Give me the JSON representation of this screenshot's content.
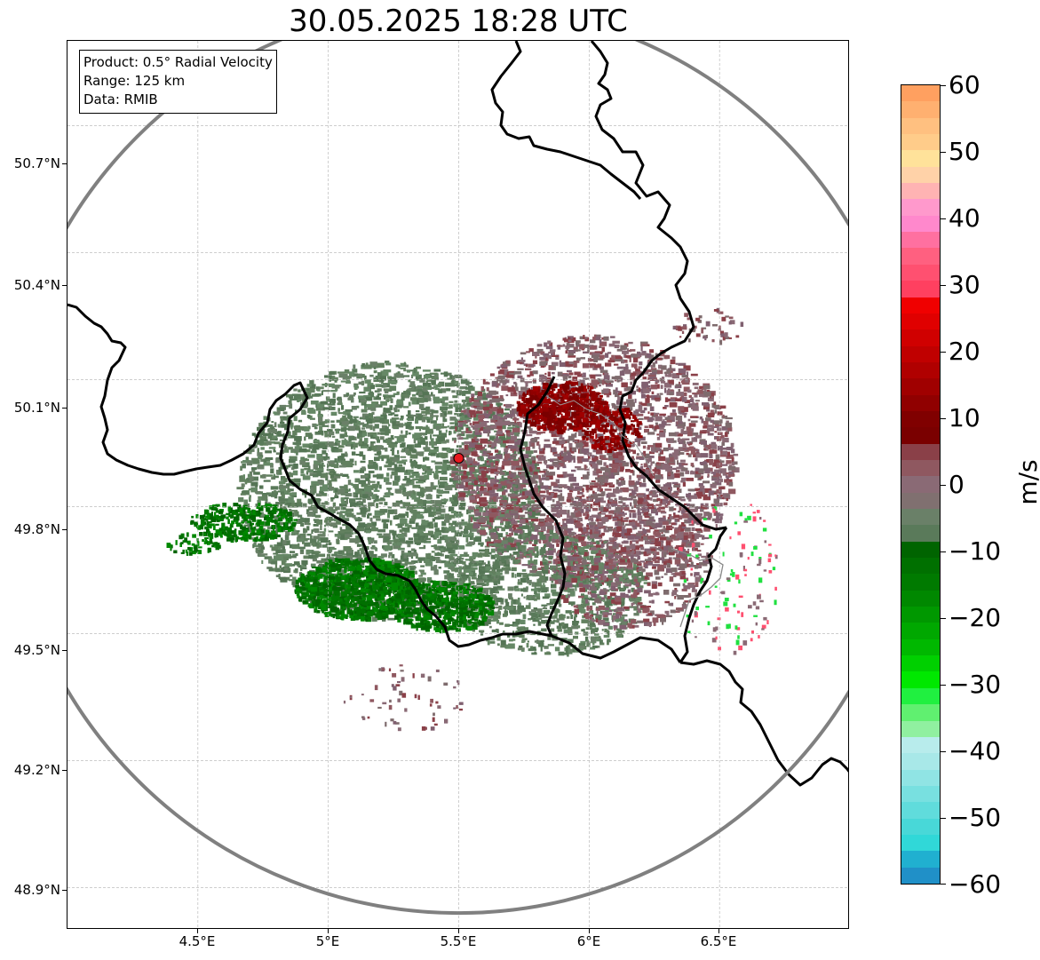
{
  "title": "30.05.2025 18:28 UTC",
  "info": {
    "product": "Product: 0.5° Radial Velocity",
    "range": "Range: 125 km",
    "source": "Data: RMIB"
  },
  "axes": {
    "lat_labels": [
      "50.7°N",
      "50.4°N",
      "50.1°N",
      "49.8°N",
      "49.5°N",
      "49.2°N",
      "48.9°N"
    ],
    "lon_labels": [
      "4.5°E",
      "5°E",
      "5.5°E",
      "6°E",
      "6.5°E"
    ],
    "lon_range": [
      4.0,
      7.0
    ],
    "lat_range": [
      48.8,
      50.9
    ],
    "grid": true
  },
  "radar": {
    "site_lon": 5.5,
    "site_lat": 49.914,
    "range_km": 125,
    "site_color": "#e8191f"
  },
  "colorbar": {
    "unit": "m/s",
    "min": -60,
    "max": 60,
    "tick_labels": [
      "60",
      "50",
      "40",
      "30",
      "20",
      "10",
      "0",
      "−10",
      "−20",
      "−30",
      "−40",
      "−50",
      "−60"
    ],
    "colors_top_to_bottom": [
      "#ffa060",
      "#ffb070",
      "#ffc080",
      "#ffcc8a",
      "#ffe29a",
      "#ffd2a8",
      "#ffb3b3",
      "#ff99cc",
      "#ff88cc",
      "#ff70a0",
      "#ff6080",
      "#ff5070",
      "#ff4060",
      "#f00000",
      "#e00000",
      "#d00000",
      "#c00000",
      "#b00000",
      "#a00000",
      "#900000",
      "#800000",
      "#7a0000",
      "#8a4048",
      "#8f5860",
      "#8a6a75",
      "#807070",
      "#6a8068",
      "#5a7a5a",
      "#006400",
      "#007000",
      "#007a00",
      "#008800",
      "#009800",
      "#00a800",
      "#00b800",
      "#00d000",
      "#00e800",
      "#20f040",
      "#60f070",
      "#90f0a0",
      "#b8ecec",
      "#a8e8e8",
      "#90e4e4",
      "#78e0e0",
      "#60dcdc",
      "#48d8d8",
      "#30d8d8",
      "#20b0d0",
      "#2090c8"
    ]
  }
}
